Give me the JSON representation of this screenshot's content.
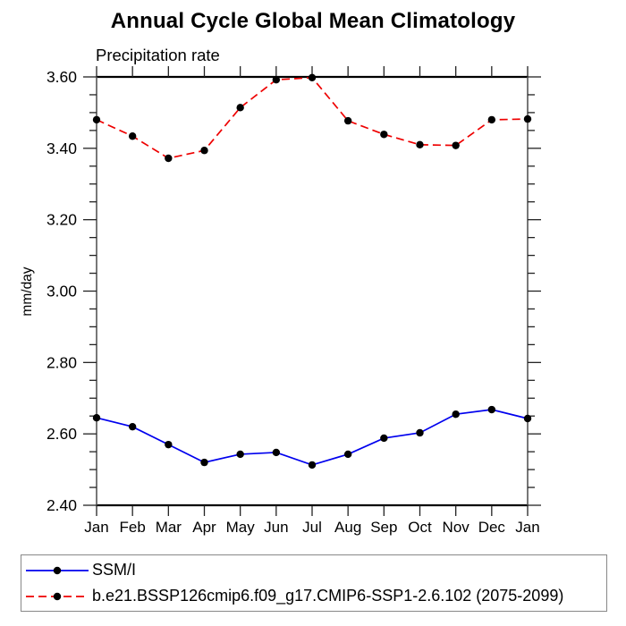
{
  "chart_data": {
    "type": "line",
    "title": "Annual Cycle Global Mean Climatology",
    "subtitle": "Precipitation rate",
    "ylabel": "mm/day",
    "xlabel": "",
    "categories": [
      "Jan",
      "Feb",
      "Mar",
      "Apr",
      "May",
      "Jun",
      "Jul",
      "Aug",
      "Sep",
      "Oct",
      "Nov",
      "Dec",
      "Jan"
    ],
    "series": [
      {
        "name": "SSM/I",
        "color": "#0000ee",
        "line_style": "solid",
        "marker": "filled-circle",
        "marker_color": "#000000",
        "values": [
          2.645,
          2.62,
          2.57,
          2.52,
          2.543,
          2.548,
          2.513,
          2.543,
          2.588,
          2.603,
          2.655,
          2.668,
          2.643
        ]
      },
      {
        "name": "b.e21.BSSP126cmip6.f09_g17.CMIP6-SSP1-2.6.102 (2075-2099)",
        "color": "#ee0000",
        "line_style": "dashed",
        "marker": "filled-circle",
        "marker_color": "#000000",
        "values": [
          3.48,
          3.434,
          3.372,
          3.394,
          3.514,
          3.592,
          3.598,
          3.477,
          3.439,
          3.41,
          3.408,
          3.48,
          3.482
        ]
      }
    ],
    "ylim": [
      2.4,
      3.6
    ],
    "ytick_major": 0.2,
    "ytick_minor": 0.05,
    "grid": false,
    "legend_position": "bottom"
  }
}
